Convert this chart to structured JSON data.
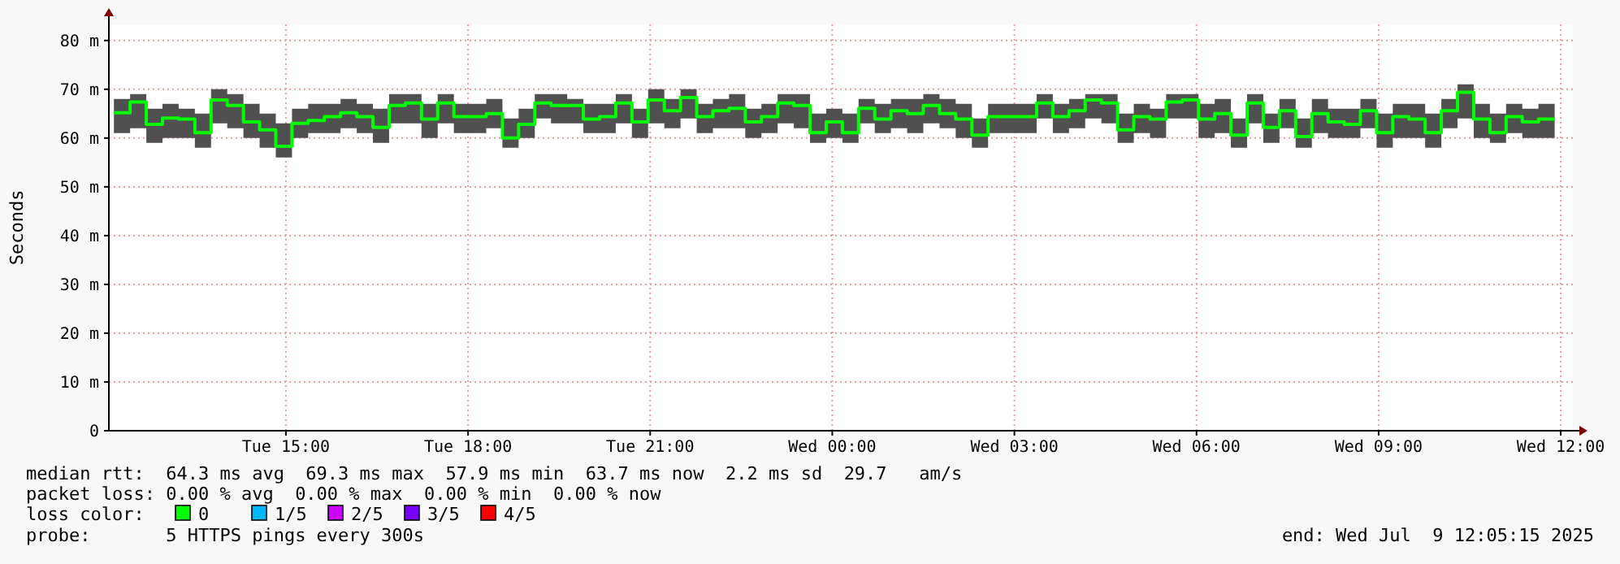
{
  "chart_data": {
    "type": "step",
    "ylabel": "Seconds",
    "legend_title": "loss color:",
    "legend": "bottom",
    "grid": true,
    "xlim": [
      "2025-07-08T12:05",
      "2025-07-09T12:12"
    ],
    "xticks": [
      {
        "value": "2025-07-08T15:00",
        "label": "Tue 15:00"
      },
      {
        "value": "2025-07-08T18:00",
        "label": "Tue 18:00"
      },
      {
        "value": "2025-07-08T21:00",
        "label": "Tue 21:00"
      },
      {
        "value": "2025-07-09T00:00",
        "label": "Wed 00:00"
      },
      {
        "value": "2025-07-09T03:00",
        "label": "Wed 03:00"
      },
      {
        "value": "2025-07-09T06:00",
        "label": "Wed 06:00"
      },
      {
        "value": "2025-07-09T09:00",
        "label": "Wed 09:00"
      },
      {
        "value": "2025-07-09T12:00",
        "label": "Wed 12:00"
      }
    ],
    "ylim": [
      0,
      83.3
    ],
    "yticks": [
      0,
      {
        "value": 10,
        "label": "10 m"
      },
      {
        "value": 20,
        "label": "20 m"
      },
      {
        "value": 30,
        "label": "30 m"
      },
      {
        "value": 40,
        "label": "40 m"
      },
      {
        "value": 50,
        "label": "50 m"
      },
      {
        "value": 60,
        "label": "60 m"
      },
      {
        "value": 70,
        "label": "70 m"
      },
      {
        "value": 80,
        "label": "80 m"
      }
    ],
    "x": [
      "2025-07-08T12:10",
      "2025-07-08T12:26",
      "2025-07-08T12:42",
      "2025-07-08T12:58",
      "2025-07-08T13:14",
      "2025-07-08T13:30",
      "2025-07-08T13:46",
      "2025-07-08T14:02",
      "2025-07-08T14:18",
      "2025-07-08T14:34",
      "2025-07-08T14:50",
      "2025-07-08T15:06",
      "2025-07-08T15:22",
      "2025-07-08T15:38",
      "2025-07-08T15:54",
      "2025-07-08T16:10",
      "2025-07-08T16:26",
      "2025-07-08T16:42",
      "2025-07-08T16:58",
      "2025-07-08T17:14",
      "2025-07-08T17:30",
      "2025-07-08T17:46",
      "2025-07-08T18:02",
      "2025-07-08T18:18",
      "2025-07-08T18:34",
      "2025-07-08T18:50",
      "2025-07-08T19:06",
      "2025-07-08T19:22",
      "2025-07-08T19:38",
      "2025-07-08T19:54",
      "2025-07-08T20:10",
      "2025-07-08T20:26",
      "2025-07-08T20:42",
      "2025-07-08T20:58",
      "2025-07-08T21:14",
      "2025-07-08T21:30",
      "2025-07-08T21:46",
      "2025-07-08T22:02",
      "2025-07-08T22:18",
      "2025-07-08T22:34",
      "2025-07-08T22:50",
      "2025-07-08T23:06",
      "2025-07-08T23:22",
      "2025-07-08T23:38",
      "2025-07-08T23:54",
      "2025-07-09T00:10",
      "2025-07-09T00:26",
      "2025-07-09T00:42",
      "2025-07-09T00:58",
      "2025-07-09T01:14",
      "2025-07-09T01:30",
      "2025-07-09T01:46",
      "2025-07-09T02:02",
      "2025-07-09T02:18",
      "2025-07-09T02:34",
      "2025-07-09T02:50",
      "2025-07-09T03:06",
      "2025-07-09T03:22",
      "2025-07-09T03:38",
      "2025-07-09T03:54",
      "2025-07-09T04:10",
      "2025-07-09T04:26",
      "2025-07-09T04:42",
      "2025-07-09T04:58",
      "2025-07-09T05:14",
      "2025-07-09T05:30",
      "2025-07-09T05:46",
      "2025-07-09T06:02",
      "2025-07-09T06:18",
      "2025-07-09T06:34",
      "2025-07-09T06:50",
      "2025-07-09T07:06",
      "2025-07-09T07:22",
      "2025-07-09T07:38",
      "2025-07-09T07:54",
      "2025-07-09T08:10",
      "2025-07-09T08:26",
      "2025-07-09T08:42",
      "2025-07-09T08:58",
      "2025-07-09T09:14",
      "2025-07-09T09:30",
      "2025-07-09T09:46",
      "2025-07-09T10:02",
      "2025-07-09T10:18",
      "2025-07-09T10:34",
      "2025-07-09T10:50",
      "2025-07-09T11:06",
      "2025-07-09T11:22",
      "2025-07-09T11:38",
      "2025-07-09T11:54"
    ],
    "series": [
      {
        "name": "0",
        "color": "#00ff00",
        "values": [
          65.2,
          67.4,
          62.8,
          64.1,
          63.9,
          61.1,
          67.8,
          66.7,
          63.3,
          61.7,
          58.3,
          63,
          63.6,
          64.4,
          65.2,
          64.4,
          62.2,
          66.7,
          67.2,
          63.9,
          67.2,
          64.4,
          64.4,
          65,
          60,
          62.8,
          67.2,
          66.7,
          66.7,
          63.9,
          64.4,
          67.2,
          63.3,
          67.8,
          65.6,
          68.3,
          64.4,
          65.6,
          66.1,
          63.3,
          64.4,
          67.2,
          66.7,
          61.1,
          63.3,
          61.1,
          66.1,
          63.9,
          65.6,
          65,
          66.7,
          65,
          63.9,
          60.6,
          64.4,
          64.4,
          64.4,
          67.2,
          64.4,
          65.6,
          67.8,
          67.2,
          61.7,
          64.4,
          63.9,
          67.4,
          67.8,
          63.9,
          65,
          60.6,
          67.2,
          62.2,
          65.6,
          60.3,
          65,
          63.3,
          62.8,
          65.6,
          61.1,
          64.4,
          63.9,
          61.1,
          65.6,
          69.4,
          63.9,
          61.1,
          64.4,
          63.3,
          63.9,
          63.9
        ],
        "lower": [
          61,
          62,
          59,
          60,
          60,
          58,
          63,
          62,
          60,
          58,
          56,
          60,
          61,
          61,
          62,
          61,
          59,
          63,
          63,
          60,
          63,
          61,
          61,
          62,
          58,
          60,
          64,
          63,
          63,
          61,
          61,
          63,
          60,
          63,
          62,
          64,
          61,
          62,
          62,
          60,
          61,
          63,
          62,
          59,
          60,
          59,
          63,
          61,
          62,
          61,
          63,
          62,
          60,
          58,
          61,
          61,
          61,
          64,
          61,
          62,
          64,
          63,
          59,
          61,
          60,
          64,
          64,
          60,
          61,
          58,
          63,
          59,
          62,
          58,
          61,
          60,
          60,
          62,
          58,
          60,
          60,
          58,
          62,
          64,
          60,
          59,
          61,
          60,
          60,
          61
        ],
        "upper": [
          68,
          69,
          66,
          67,
          66,
          65,
          70,
          69,
          67,
          65,
          63,
          66,
          67,
          67,
          68,
          67,
          66,
          69,
          69,
          67,
          69,
          67,
          67,
          68,
          64,
          66,
          69,
          69,
          68,
          67,
          67,
          69,
          66,
          70,
          68,
          70,
          67,
          68,
          69,
          66,
          67,
          69,
          69,
          65,
          66,
          65,
          68,
          67,
          68,
          68,
          69,
          68,
          67,
          64,
          67,
          67,
          67,
          69,
          67,
          68,
          69,
          69,
          65,
          67,
          66,
          69,
          69,
          67,
          68,
          64,
          69,
          65,
          68,
          64,
          68,
          66,
          66,
          68,
          65,
          67,
          67,
          65,
          68,
          71,
          67,
          65,
          67,
          66,
          67,
          66
        ]
      },
      {
        "name": "1/5",
        "color": "#00b8ff",
        "values": [
          null,
          null,
          null,
          null,
          null,
          null,
          null,
          null,
          null,
          null,
          null,
          null,
          null,
          null,
          null,
          null,
          null,
          null,
          null,
          null,
          null,
          null,
          null,
          null,
          null,
          null,
          null,
          null,
          null,
          null,
          null,
          null,
          null,
          null,
          null,
          null,
          null,
          null,
          null,
          null,
          null,
          null,
          null,
          null,
          null,
          null,
          null,
          null,
          null,
          null,
          null,
          null,
          null,
          null,
          null,
          null,
          null,
          null,
          null,
          null,
          null,
          null,
          null,
          null,
          null,
          null,
          null,
          null,
          null,
          null,
          null,
          null,
          null,
          null,
          null,
          null,
          null,
          null,
          null,
          null,
          null,
          null,
          null,
          null,
          null,
          null,
          null,
          null,
          null,
          null
        ]
      },
      {
        "name": "2/5",
        "color": "#cc00ff",
        "values": [
          null,
          null,
          null,
          null,
          null,
          null,
          null,
          null,
          null,
          null,
          null,
          null,
          null,
          null,
          null,
          null,
          null,
          null,
          null,
          null,
          null,
          null,
          null,
          null,
          null,
          null,
          null,
          null,
          null,
          null,
          null,
          null,
          null,
          null,
          null,
          null,
          null,
          null,
          null,
          null,
          null,
          null,
          null,
          null,
          null,
          null,
          null,
          null,
          null,
          null,
          null,
          null,
          null,
          null,
          null,
          null,
          null,
          null,
          null,
          null,
          null,
          null,
          null,
          null,
          null,
          null,
          null,
          null,
          null,
          null,
          null,
          null,
          null,
          null,
          null,
          null,
          null,
          null,
          null,
          null,
          null,
          null,
          null,
          null,
          null,
          null,
          null,
          null,
          null,
          null
        ]
      },
      {
        "name": "3/5",
        "color": "#7700ff",
        "values": [
          null,
          null,
          null,
          null,
          null,
          null,
          null,
          null,
          null,
          null,
          null,
          null,
          null,
          null,
          null,
          null,
          null,
          null,
          null,
          null,
          null,
          null,
          null,
          null,
          null,
          null,
          null,
          null,
          null,
          null,
          null,
          null,
          null,
          null,
          null,
          null,
          null,
          null,
          null,
          null,
          null,
          null,
          null,
          null,
          null,
          null,
          null,
          null,
          null,
          null,
          null,
          null,
          null,
          null,
          null,
          null,
          null,
          null,
          null,
          null,
          null,
          null,
          null,
          null,
          null,
          null,
          null,
          null,
          null,
          null,
          null,
          null,
          null,
          null,
          null,
          null,
          null,
          null,
          null,
          null,
          null,
          null,
          null,
          null,
          null,
          null,
          null,
          null,
          null,
          null
        ]
      },
      {
        "name": "4/5",
        "color": "#ff0000",
        "values": [
          null,
          null,
          null,
          null,
          null,
          null,
          null,
          null,
          null,
          null,
          null,
          null,
          null,
          null,
          null,
          null,
          null,
          null,
          null,
          null,
          null,
          null,
          null,
          null,
          null,
          null,
          null,
          null,
          null,
          null,
          null,
          null,
          null,
          null,
          null,
          null,
          null,
          null,
          null,
          null,
          null,
          null,
          null,
          null,
          null,
          null,
          null,
          null,
          null,
          null,
          null,
          null,
          null,
          null,
          null,
          null,
          null,
          null,
          null,
          null,
          null,
          null,
          null,
          null,
          null,
          null,
          null,
          null,
          null,
          null,
          null,
          null,
          null,
          null,
          null,
          null,
          null,
          null,
          null,
          null,
          null,
          null,
          null,
          null,
          null,
          null,
          null,
          null,
          null,
          null
        ]
      }
    ],
    "annotations": [
      "median rtt:  64.3 ms avg  69.3 ms max  57.9 ms min  63.7 ms now  2.2 ms sd  29.7   am/s",
      "packet loss: 0.00 % avg  0.00 % max  0.00 % min  0.00 % now",
      "probe:       5 HTTPS pings every 300s",
      "end: Wed Jul  9 12:05:15 2025"
    ]
  }
}
